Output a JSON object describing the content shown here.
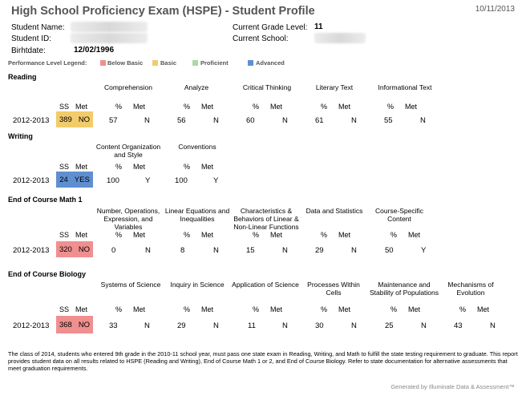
{
  "header": {
    "title": "High School Proficiency Exam (HSPE) - Student Profile",
    "date": "10/11/2013"
  },
  "student": {
    "name_label": "Student Name:",
    "id_label": "Student ID:",
    "birthdate_label": "Birhtdate:",
    "birthdate": "12/02/1996",
    "grade_label": "Current Grade Level:",
    "grade": "11",
    "school_label": "Current School:"
  },
  "legend": {
    "title": "Performance Level Legend:",
    "items": [
      {
        "label": "Below Basic",
        "color": "#f08f8f"
      },
      {
        "label": "Basic",
        "color": "#f2cc6b"
      },
      {
        "label": "Proficient",
        "color": "#a9d9a4"
      },
      {
        "label": "Advanced",
        "color": "#5f8fd1"
      }
    ]
  },
  "col_labels": {
    "ss": "SS",
    "met": "Met",
    "pct": "%",
    "met2": "Met"
  },
  "sections": [
    {
      "title": "Reading",
      "year": "2012-2013",
      "ss": "389",
      "met": "NO",
      "color": "#f2cc6b",
      "strands": [
        {
          "name": "Comprehension",
          "pct": "57",
          "met": "N"
        },
        {
          "name": "Analyze",
          "pct": "56",
          "met": "N"
        },
        {
          "name": "Critical Thinking",
          "pct": "60",
          "met": "N"
        },
        {
          "name": "Literary Text",
          "pct": "61",
          "met": "N"
        },
        {
          "name": "Informational Text",
          "pct": "55",
          "met": "N"
        }
      ]
    },
    {
      "title": "Writing",
      "year": "2012-2013",
      "ss": "24",
      "met": "YES",
      "color": "#5f8fd1",
      "strands": [
        {
          "name": "Content Organization and Style",
          "pct": "100",
          "met": "Y"
        },
        {
          "name": "Conventions",
          "pct": "100",
          "met": "Y"
        }
      ]
    },
    {
      "title": "End of Course Math 1",
      "year": "2012-2013",
      "ss": "320",
      "met": "NO",
      "color": "#f08f8f",
      "strands": [
        {
          "name": "Number, Operations, Expression, and Variables",
          "pct": "0",
          "met": "N"
        },
        {
          "name": "Linear Equations and Inequalities",
          "pct": "8",
          "met": "N"
        },
        {
          "name": "Characteristics & Behaviors of Linear & Non-Linear Functions",
          "pct": "15",
          "met": "N"
        },
        {
          "name": "Data and Statistics",
          "pct": "29",
          "met": "N"
        },
        {
          "name": "Course-Specific Content",
          "pct": "50",
          "met": "Y"
        }
      ]
    },
    {
      "title": "End of Course Biology",
      "year": "2012-2013",
      "ss": "368",
      "met": "NO",
      "color": "#f08f8f",
      "strands": [
        {
          "name": "Systems of Science",
          "pct": "33",
          "met": "N"
        },
        {
          "name": "Inquiry in Science",
          "pct": "29",
          "met": "N"
        },
        {
          "name": "Application of Science",
          "pct": "11",
          "met": "N"
        },
        {
          "name": "Processes Within Cells",
          "pct": "30",
          "met": "N"
        },
        {
          "name": "Maintenance and Stability of Populations",
          "pct": "25",
          "met": "N"
        },
        {
          "name": "Mechanisms of Evolution",
          "pct": "43",
          "met": "N"
        }
      ]
    }
  ],
  "note": "The class of 2014, students who entered 9th grade in the 2010-11 school year, must pass one state exam in Reading, Writing, and Math to fulfill the state testing requirement to graduate. This report provides student data on all results related to HSPE (Reading and Writing), End of Course Math 1 or 2, and End of Course Biology.  Refer to state documentation for alternative assessments that meet graduation requirements.",
  "footer": "Generated by Illuminate Data & Assessment™"
}
